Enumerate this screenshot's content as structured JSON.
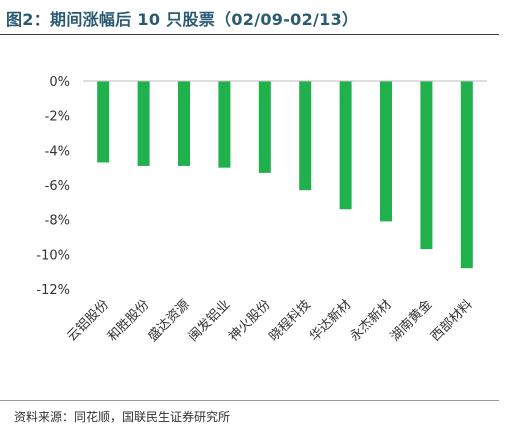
{
  "title": "图2：期间涨幅后 10 只股票（02/09-02/13）",
  "source": "资料来源：同花顺，国联民生证券研究所",
  "colors": {
    "bar": "#21b14c",
    "title": "#2b5a73",
    "axis": "#bdbdbd"
  },
  "chart_data": {
    "type": "bar",
    "categories": [
      "云铝股份",
      "和胜股份",
      "盛达资源",
      "闽发铝业",
      "神火股份",
      "晓程科技",
      "华达新材",
      "永杰新材",
      "湖南黄金",
      "西部材料"
    ],
    "values": [
      -4.7,
      -4.9,
      -4.9,
      -5.0,
      -5.3,
      -6.3,
      -7.4,
      -8.1,
      -9.7,
      -10.8
    ],
    "ylim": [
      -12,
      0
    ],
    "yticks": [
      "0%",
      "-2%",
      "-4%",
      "-6%",
      "-8%",
      "-10%",
      "-12%"
    ],
    "ytick_values": [
      0,
      -2,
      -4,
      -6,
      -8,
      -10,
      -12
    ],
    "grid": false,
    "legend": "none"
  }
}
